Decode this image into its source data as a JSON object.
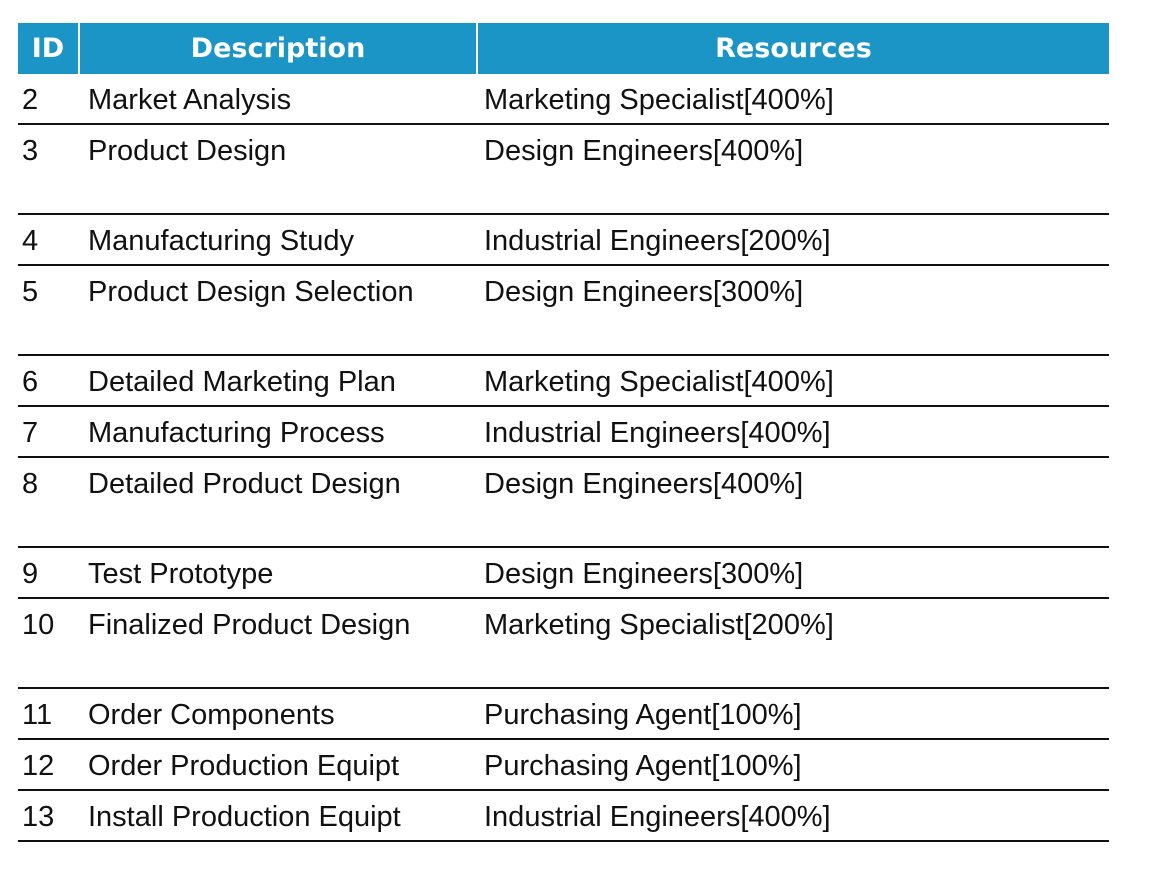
{
  "table": {
    "header": {
      "id": "ID",
      "description": "Description",
      "resources": "Resources"
    },
    "rows": [
      {
        "id": "2",
        "description": "Market Analysis",
        "resources": "Marketing Specialist[400%]",
        "tall": false
      },
      {
        "id": "3",
        "description": "Product Design",
        "resources": "Design Engineers[400%]",
        "tall": true
      },
      {
        "id": "4",
        "description": "Manufacturing Study",
        "resources": "Industrial Engineers[200%]",
        "tall": false
      },
      {
        "id": "5",
        "description": "Product Design Selection",
        "resources": "Design Engineers[300%]",
        "tall": true
      },
      {
        "id": "6",
        "description": "Detailed Marketing Plan",
        "resources": "Marketing Specialist[400%]",
        "tall": false
      },
      {
        "id": "7",
        "description": "Manufacturing Process",
        "resources": "Industrial Engineers[400%]",
        "tall": false
      },
      {
        "id": "8",
        "description": "Detailed Product Design",
        "resources": "Design Engineers[400%]",
        "tall": true
      },
      {
        "id": "9",
        "description": "Test Prototype",
        "resources": "Design Engineers[300%]",
        "tall": false
      },
      {
        "id": "10",
        "description": "Finalized Product Design",
        "resources": "Marketing Specialist[200%]",
        "tall": true
      },
      {
        "id": "11",
        "description": "Order Components",
        "resources": "Purchasing Agent[100%]",
        "tall": false
      },
      {
        "id": "12",
        "description": "Order Production Equipt",
        "resources": "Purchasing Agent[100%]",
        "tall": false
      },
      {
        "id": "13",
        "description": "Install Production Equipt",
        "resources": "Industrial Engineers[400%]",
        "tall": false
      }
    ]
  },
  "colors": {
    "header_bg": "#1b95c5",
    "header_text": "#ffffff",
    "rule": "#111111"
  }
}
